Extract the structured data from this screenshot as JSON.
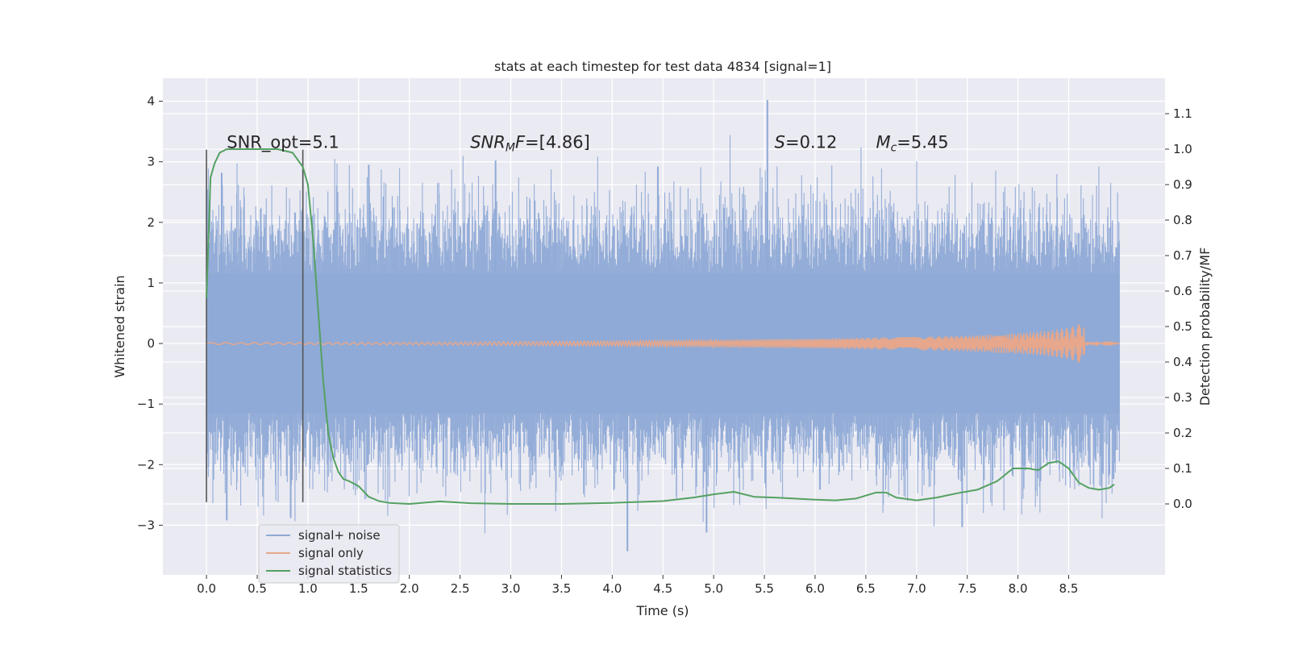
{
  "chart_data": {
    "type": "line",
    "title": "stats at each timestep for test data 4834 [signal=1]",
    "xlabel": "Time (s)",
    "ylabel": "Whitened strain",
    "y2label": "Detection probability/MF",
    "xlim": [
      -0.43,
      9.45
    ],
    "ylim": [
      -3.82,
      4.38
    ],
    "y2lim": [
      -0.2,
      1.2
    ],
    "x_ticks": [
      0.0,
      0.5,
      1.0,
      1.5,
      2.0,
      2.5,
      3.0,
      3.5,
      4.0,
      4.5,
      5.0,
      5.5,
      6.0,
      6.5,
      7.0,
      7.5,
      8.0,
      8.5
    ],
    "x_tick_labels": [
      "0.0",
      "0.5",
      "1.0",
      "1.5",
      "2.0",
      "2.5",
      "3.0",
      "3.5",
      "4.0",
      "4.5",
      "5.0",
      "5.5",
      "6.0",
      "6.5",
      "7.0",
      "7.5",
      "8.0",
      "8.5"
    ],
    "y_ticks": [
      4,
      3,
      2,
      1,
      0,
      -1,
      -2,
      -3
    ],
    "y_tick_labels": [
      "4",
      "3",
      "2",
      "1",
      "0",
      "−1",
      "−2",
      "−3"
    ],
    "y2_ticks": [
      1.1,
      1.0,
      0.9,
      0.8,
      0.7,
      0.6,
      0.5,
      0.4,
      0.3,
      0.2,
      0.1,
      0.0
    ],
    "y2_tick_labels": [
      "1.1",
      "1.0",
      "0.9",
      "0.8",
      "0.7",
      "0.6",
      "0.5",
      "0.4",
      "0.3",
      "0.2",
      "0.1",
      "0.0"
    ],
    "grid": true,
    "legend_position": "lower-left",
    "series": [
      {
        "name": "signal+ noise",
        "color": "#8faad6",
        "axis": "left",
        "x_range": [
          0.0,
          9.0
        ],
        "peak_values": [
          [
            5.53,
            4.02
          ],
          [
            2.85,
            3.02
          ],
          [
            4.45,
            2.92
          ],
          [
            1.6,
            2.95
          ],
          [
            0.15,
            2.82
          ],
          [
            7.45,
            -3.03
          ],
          [
            4.15,
            -3.43
          ],
          [
            4.93,
            -3.12
          ],
          [
            0.2,
            -2.92
          ],
          [
            0.83,
            -2.88
          ]
        ],
        "typical_envelope": [
          -2.0,
          2.1
        ]
      },
      {
        "name": "signal only",
        "color": "#e6a78c",
        "axis": "left",
        "x_range": [
          0.0,
          9.0
        ],
        "envelope": {
          "x": [
            0.0,
            2.0,
            3.0,
            4.0,
            5.0,
            6.0,
            7.0,
            7.5,
            8.0,
            8.3,
            8.5,
            8.6,
            8.65,
            8.66,
            9.0
          ],
          "amplitude": [
            0.015,
            0.02,
            0.03,
            0.04,
            0.06,
            0.08,
            0.11,
            0.13,
            0.17,
            0.21,
            0.26,
            0.32,
            0.4,
            0.02,
            0.01
          ]
        }
      },
      {
        "name": "signal statistics",
        "color": "#54a161",
        "axis": "right",
        "x": [
          0.0,
          0.04,
          0.08,
          0.13,
          0.2,
          0.3,
          0.5,
          0.7,
          0.85,
          0.95,
          1.0,
          1.05,
          1.1,
          1.15,
          1.2,
          1.25,
          1.3,
          1.35,
          1.4,
          1.5,
          1.6,
          1.7,
          1.8,
          2.0,
          2.3,
          2.6,
          3.0,
          3.5,
          4.0,
          4.5,
          4.8,
          5.0,
          5.2,
          5.4,
          5.6,
          5.8,
          6.0,
          6.2,
          6.4,
          6.6,
          6.7,
          6.8,
          7.0,
          7.2,
          7.4,
          7.6,
          7.8,
          7.95,
          8.1,
          8.2,
          8.3,
          8.4,
          8.5,
          8.6,
          8.7,
          8.8,
          8.9,
          8.95
        ],
        "values": [
          0.58,
          0.92,
          0.96,
          0.99,
          1.0,
          1.0,
          1.0,
          1.0,
          0.99,
          0.95,
          0.9,
          0.75,
          0.55,
          0.35,
          0.2,
          0.13,
          0.09,
          0.07,
          0.065,
          0.05,
          0.02,
          0.008,
          0.003,
          0.0,
          0.007,
          0.002,
          0.0,
          0.0,
          0.003,
          0.008,
          0.018,
          0.027,
          0.034,
          0.02,
          0.018,
          0.015,
          0.012,
          0.01,
          0.015,
          0.032,
          0.032,
          0.018,
          0.01,
          0.018,
          0.03,
          0.04,
          0.065,
          0.1,
          0.1,
          0.095,
          0.115,
          0.12,
          0.1,
          0.06,
          0.045,
          0.04,
          0.045,
          0.055
        ]
      }
    ],
    "vertical_lines": [
      0.0,
      0.95
    ],
    "vline_range": [
      -2.62,
      3.2
    ],
    "vline_color": "#555555",
    "annotations": [
      {
        "x": 0.2,
        "y": 3.2,
        "text": "SNR_opt=5.1",
        "italic": false
      },
      {
        "x": 2.6,
        "y": 3.2,
        "text": "SNRMF=[4.86]",
        "italic": true
      },
      {
        "x": 5.6,
        "y": 3.2,
        "text": "S=0.12",
        "italic": true
      },
      {
        "x": 6.6,
        "y": 3.2,
        "text": "Mc=5.45",
        "italic": true
      }
    ],
    "background_color": "#eaeaf2"
  }
}
